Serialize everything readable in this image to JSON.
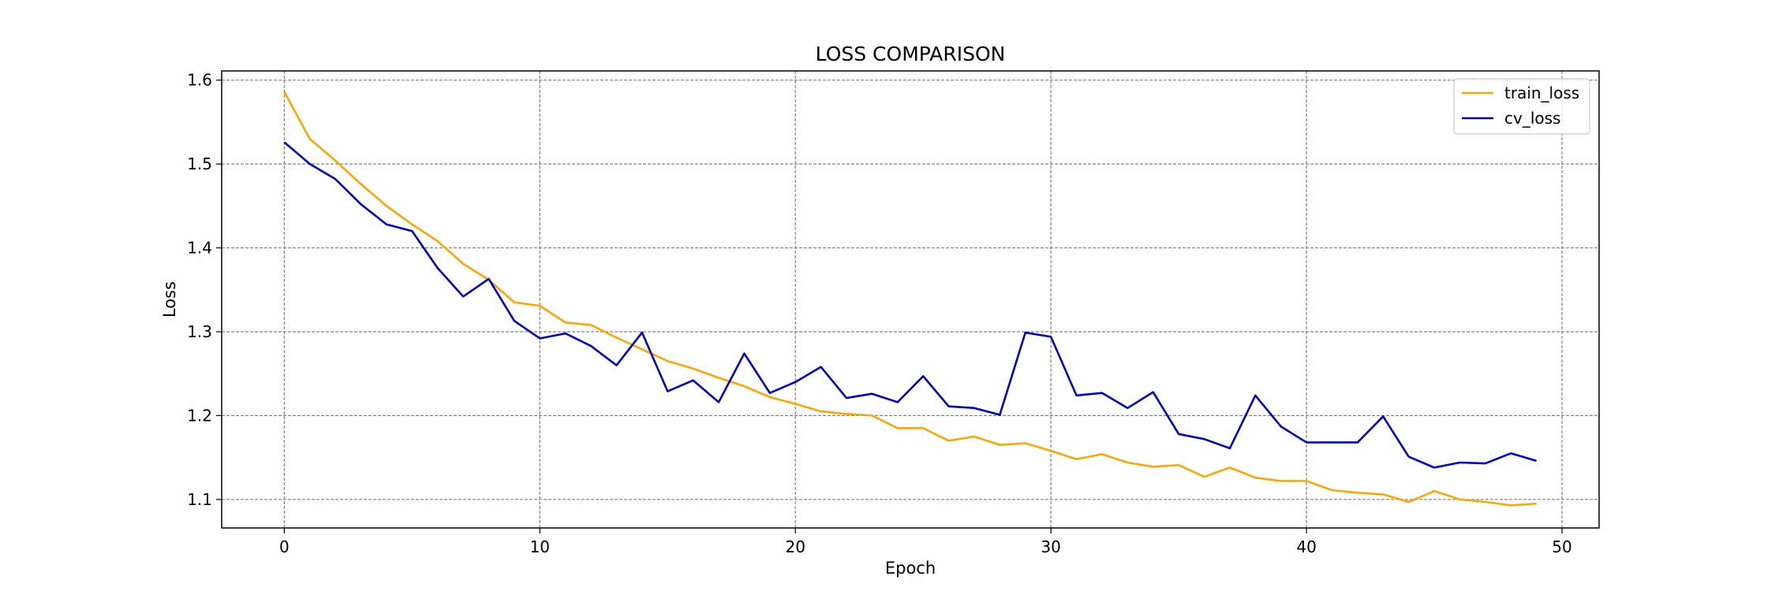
{
  "chart_data": {
    "type": "line",
    "title": "LOSS COMPARISON",
    "xlabel": "Epoch",
    "ylabel": "Loss",
    "xlim": [
      -2.45,
      51.45
    ],
    "ylim": [
      1.066,
      1.611
    ],
    "xticks": [
      0,
      10,
      20,
      30,
      40,
      50
    ],
    "yticks": [
      1.1,
      1.2,
      1.3,
      1.4,
      1.5,
      1.6
    ],
    "xtick_labels": [
      "0",
      "10",
      "20",
      "30",
      "40",
      "50"
    ],
    "ytick_labels": [
      "1.1",
      "1.2",
      "1.3",
      "1.4",
      "1.5",
      "1.6"
    ],
    "grid": true,
    "legend_position": "top-right",
    "x": [
      0,
      1,
      2,
      3,
      4,
      5,
      6,
      7,
      8,
      9,
      10,
      11,
      12,
      13,
      14,
      15,
      16,
      17,
      18,
      19,
      20,
      21,
      22,
      23,
      24,
      25,
      26,
      27,
      28,
      29,
      30,
      31,
      32,
      33,
      34,
      35,
      36,
      37,
      38,
      39,
      40,
      41,
      42,
      43,
      44,
      45,
      46,
      47,
      48,
      49
    ],
    "series": [
      {
        "name": "train_loss",
        "color": "#FFA500",
        "values": [
          1.586,
          1.53,
          1.504,
          1.476,
          1.45,
          1.428,
          1.408,
          1.381,
          1.362,
          1.335,
          1.331,
          1.311,
          1.308,
          1.293,
          1.279,
          1.265,
          1.256,
          1.245,
          1.235,
          1.222,
          1.214,
          1.205,
          1.202,
          1.2,
          1.185,
          1.185,
          1.17,
          1.175,
          1.165,
          1.167,
          1.158,
          1.148,
          1.154,
          1.144,
          1.139,
          1.141,
          1.127,
          1.138,
          1.126,
          1.122,
          1.122,
          1.111,
          1.108,
          1.106,
          1.097,
          1.11,
          1.1,
          1.097,
          1.093,
          1.095
        ]
      },
      {
        "name": "cv_loss",
        "color": "#0000CD",
        "values": [
          1.526,
          1.5,
          1.482,
          1.452,
          1.428,
          1.42,
          1.376,
          1.342,
          1.363,
          1.313,
          1.292,
          1.298,
          1.283,
          1.26,
          1.299,
          1.229,
          1.242,
          1.216,
          1.274,
          1.227,
          1.24,
          1.258,
          1.221,
          1.226,
          1.216,
          1.247,
          1.211,
          1.209,
          1.201,
          1.299,
          1.294,
          1.224,
          1.227,
          1.209,
          1.228,
          1.178,
          1.172,
          1.161,
          1.224,
          1.187,
          1.168,
          1.168,
          1.168,
          1.199,
          1.151,
          1.138,
          1.144,
          1.143,
          1.155,
          1.146
        ]
      }
    ]
  }
}
